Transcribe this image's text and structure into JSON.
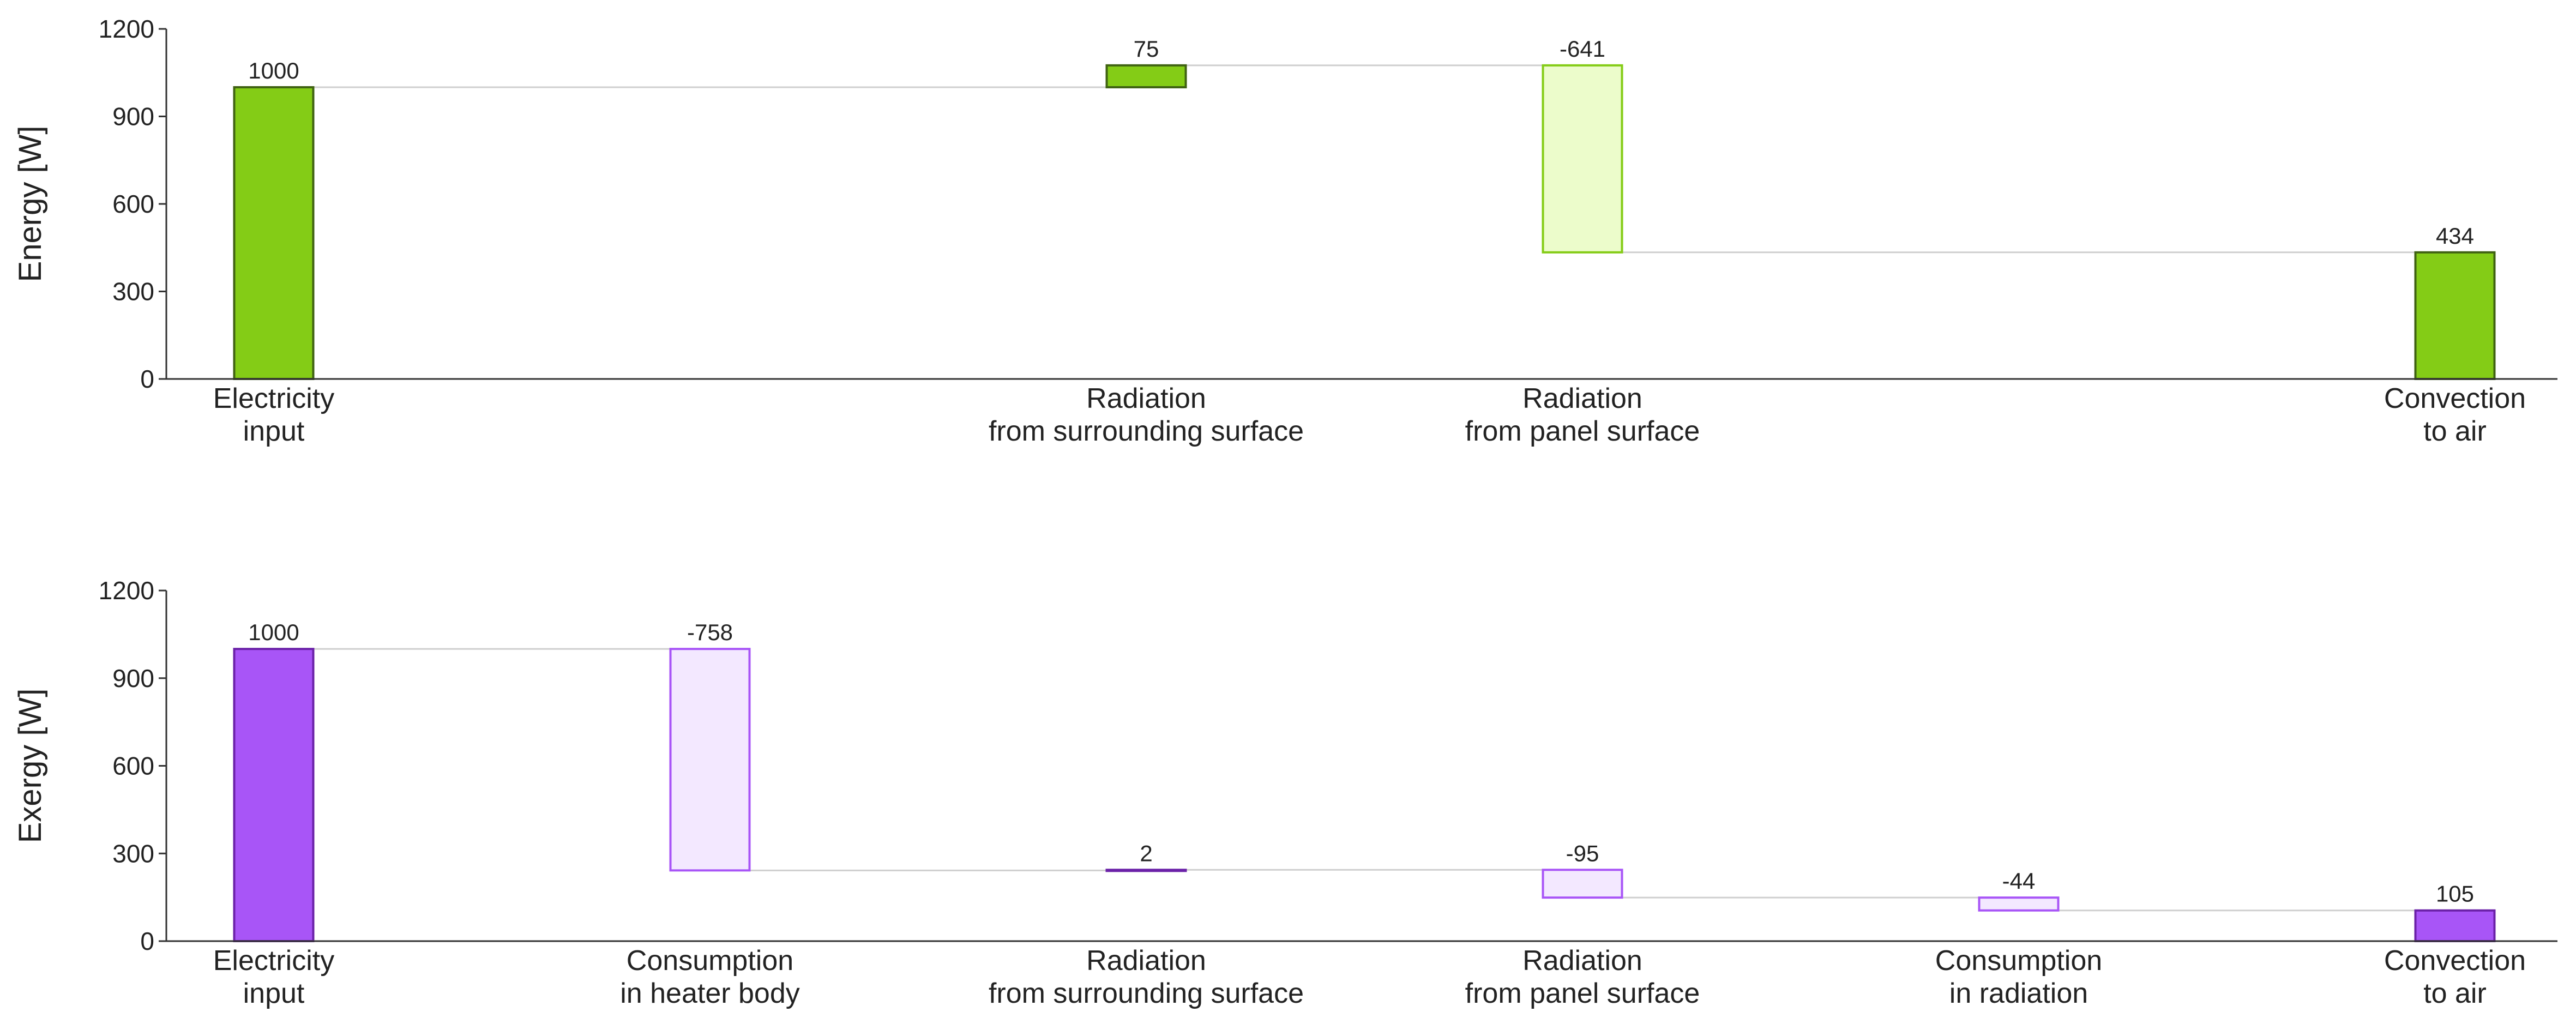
{
  "chart_data": [
    {
      "type": "bar",
      "subtype": "waterfall",
      "ylabel": "Energy [W]",
      "ylim": [
        0,
        1200
      ],
      "yticks": [
        0,
        300,
        600,
        900,
        1200
      ],
      "grid": false,
      "colors": {
        "total_fill": "#84cc16",
        "total_stroke": "#3f6212",
        "increase_fill": "#84cc16",
        "increase_stroke": "#3f6212",
        "decrease_fill": "#ecfccb",
        "decrease_stroke": "#84cc16"
      },
      "bars": [
        {
          "label_lines": [
            "Electricity",
            "input"
          ],
          "kind": "total",
          "start": 0,
          "end": 1000,
          "value_label": "1000"
        },
        {
          "label_lines": [
            "Radiation",
            "from surrounding surface"
          ],
          "kind": "increase",
          "start": 1000,
          "end": 1075,
          "value_label": "75"
        },
        {
          "label_lines": [
            "Radiation",
            "from panel surface"
          ],
          "kind": "decrease",
          "start": 1075,
          "end": 434,
          "value_label": "-641"
        },
        {
          "label_lines": [
            "Convection",
            "to air"
          ],
          "kind": "total",
          "start": 0,
          "end": 434,
          "value_label": "434"
        }
      ]
    },
    {
      "type": "bar",
      "subtype": "waterfall",
      "ylabel": "Exergy [W]",
      "ylim": [
        0,
        1200
      ],
      "yticks": [
        0,
        300,
        600,
        900,
        1200
      ],
      "grid": false,
      "colors": {
        "total_fill": "#a855f7",
        "total_stroke": "#6b21a8",
        "increase_fill": "#a855f7",
        "increase_stroke": "#6b21a8",
        "decrease_fill": "#f3e8ff",
        "decrease_stroke": "#a855f7"
      },
      "bars": [
        {
          "label_lines": [
            "Electricity",
            "input"
          ],
          "kind": "total",
          "start": 0,
          "end": 1000,
          "value_label": "1000"
        },
        {
          "label_lines": [
            "Consumption",
            "in heater body"
          ],
          "kind": "decrease",
          "start": 1000,
          "end": 242,
          "value_label": "-758"
        },
        {
          "label_lines": [
            "Radiation",
            "from surrounding surface"
          ],
          "kind": "increase",
          "start": 242,
          "end": 244,
          "value_label": "2"
        },
        {
          "label_lines": [
            "Radiation",
            "from panel surface"
          ],
          "kind": "decrease",
          "start": 244,
          "end": 149,
          "value_label": "-95"
        },
        {
          "label_lines": [
            "Consumption",
            "in radiation"
          ],
          "kind": "decrease",
          "start": 149,
          "end": 105,
          "value_label": "-44"
        },
        {
          "label_lines": [
            "Convection",
            "to air"
          ],
          "kind": "total",
          "start": 0,
          "end": 105,
          "value_label": "105"
        }
      ]
    }
  ]
}
